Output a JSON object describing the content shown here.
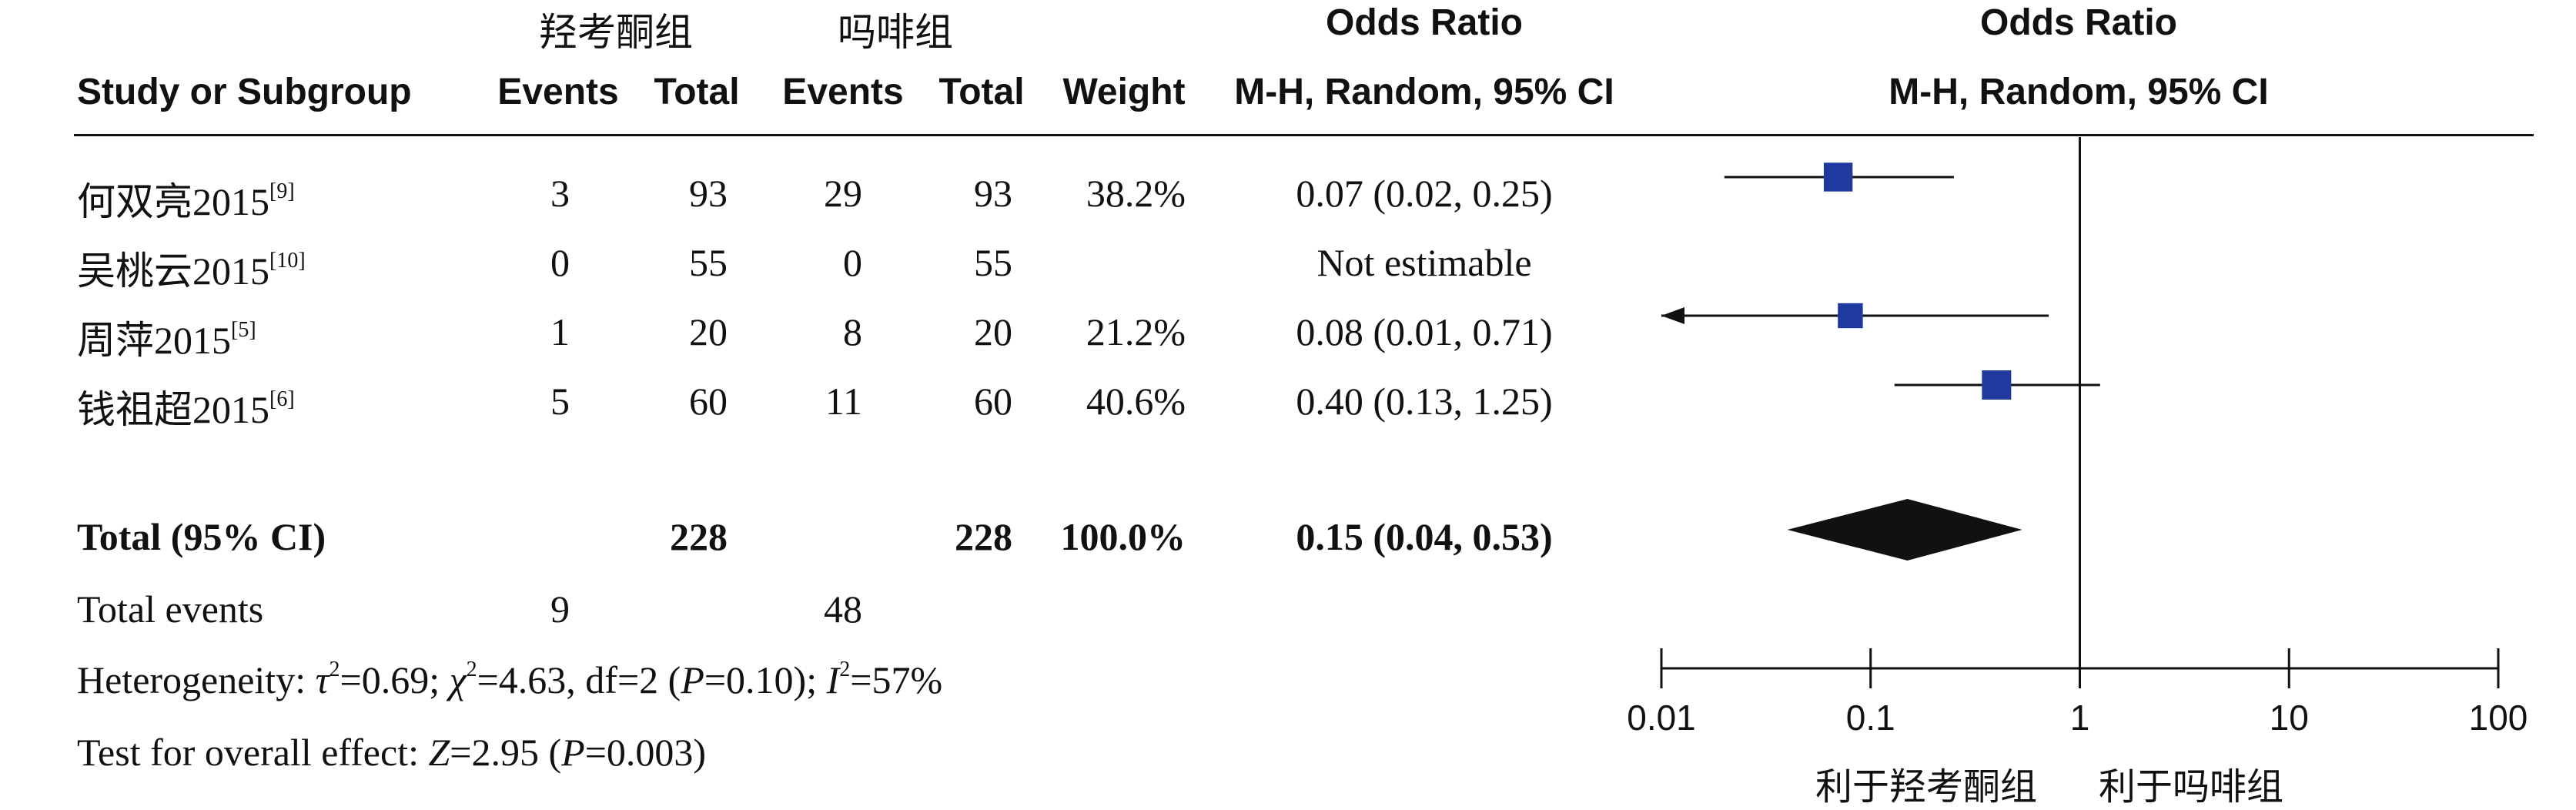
{
  "header": {
    "group_a": "羟考酮组",
    "group_b": "吗啡组",
    "odds_ratio_title": "Odds Ratio",
    "odds_ratio_title_plot": "Odds Ratio",
    "study_col": "Study or Subgroup",
    "events_a": "Events",
    "total_a": "Total",
    "events_b": "Events",
    "total_b": "Total",
    "weight": "Weight",
    "method": "M-H, Random, 95% CI",
    "method_plot": "M-H, Random, 95% CI"
  },
  "studies": [
    {
      "name": "何双亮2015",
      "ref": "[9]",
      "events_a": "3",
      "total_a": "93",
      "events_b": "29",
      "total_b": "93",
      "weight": "38.2%",
      "ci_text": "0.07 (0.02, 0.25)"
    },
    {
      "name": "吴桃云2015",
      "ref": "[10]",
      "events_a": "0",
      "total_a": "55",
      "events_b": "0",
      "total_b": "55",
      "weight": "",
      "ci_text": "Not estimable"
    },
    {
      "name": "周萍2015",
      "ref": "[5]",
      "events_a": "1",
      "total_a": "20",
      "events_b": "8",
      "total_b": "20",
      "weight": "21.2%",
      "ci_text": "0.08 (0.01, 0.71)"
    },
    {
      "name": "钱祖超2015",
      "ref": "[6]",
      "events_a": "5",
      "total_a": "60",
      "events_b": "11",
      "total_b": "60",
      "weight": "40.6%",
      "ci_text": "0.40 (0.13, 1.25)"
    }
  ],
  "total": {
    "label": "Total (95% CI)",
    "total_a": "228",
    "total_b": "228",
    "weight": "100.0%",
    "ci_text": "0.15 (0.04, 0.53)"
  },
  "total_events": {
    "label": "Total events",
    "events_a": "9",
    "events_b": "48"
  },
  "heterogeneity": {
    "prefix": "Heterogeneity: ",
    "tau": "τ",
    "tau_val": "=0.69; ",
    "chi": "χ",
    "chi_val": "=4.63, df=2 (",
    "p": "P",
    "p_val": "=0.10); ",
    "i": "I",
    "i_val": "=57%",
    "sup2": "2"
  },
  "overall": {
    "prefix": "Test for overall effect: ",
    "z": "Z",
    "z_val": "=2.95 (",
    "p": "P",
    "p_val": "=0.003)"
  },
  "axis": {
    "tick_labels": [
      "0.01",
      "0.1",
      "1",
      "10",
      "100"
    ],
    "favours_left": "利于羟考酮组",
    "favours_right": "利于吗啡组"
  },
  "colors": {
    "study_marker": "#1f3a9e",
    "diamond": "#111111",
    "line": "#111111"
  },
  "chart_data": {
    "type": "forest",
    "scale": "log",
    "xlim": [
      0.01,
      100
    ],
    "ticks": [
      0.01,
      0.1,
      1,
      10,
      100
    ],
    "reference_line": 1,
    "studies": [
      {
        "name": "何双亮2015",
        "or": 0.07,
        "lower": 0.02,
        "upper": 0.25,
        "weight": 38.2
      },
      {
        "name": "吴桃云2015",
        "or": null,
        "lower": null,
        "upper": null,
        "weight": null
      },
      {
        "name": "周萍2015",
        "or": 0.08,
        "lower": 0.01,
        "upper": 0.71,
        "weight": 21.2,
        "lower_clipped": true
      },
      {
        "name": "钱祖超2015",
        "or": 0.4,
        "lower": 0.13,
        "upper": 1.25,
        "weight": 40.6
      }
    ],
    "pooled": {
      "or": 0.15,
      "lower": 0.04,
      "upper": 0.53
    }
  }
}
